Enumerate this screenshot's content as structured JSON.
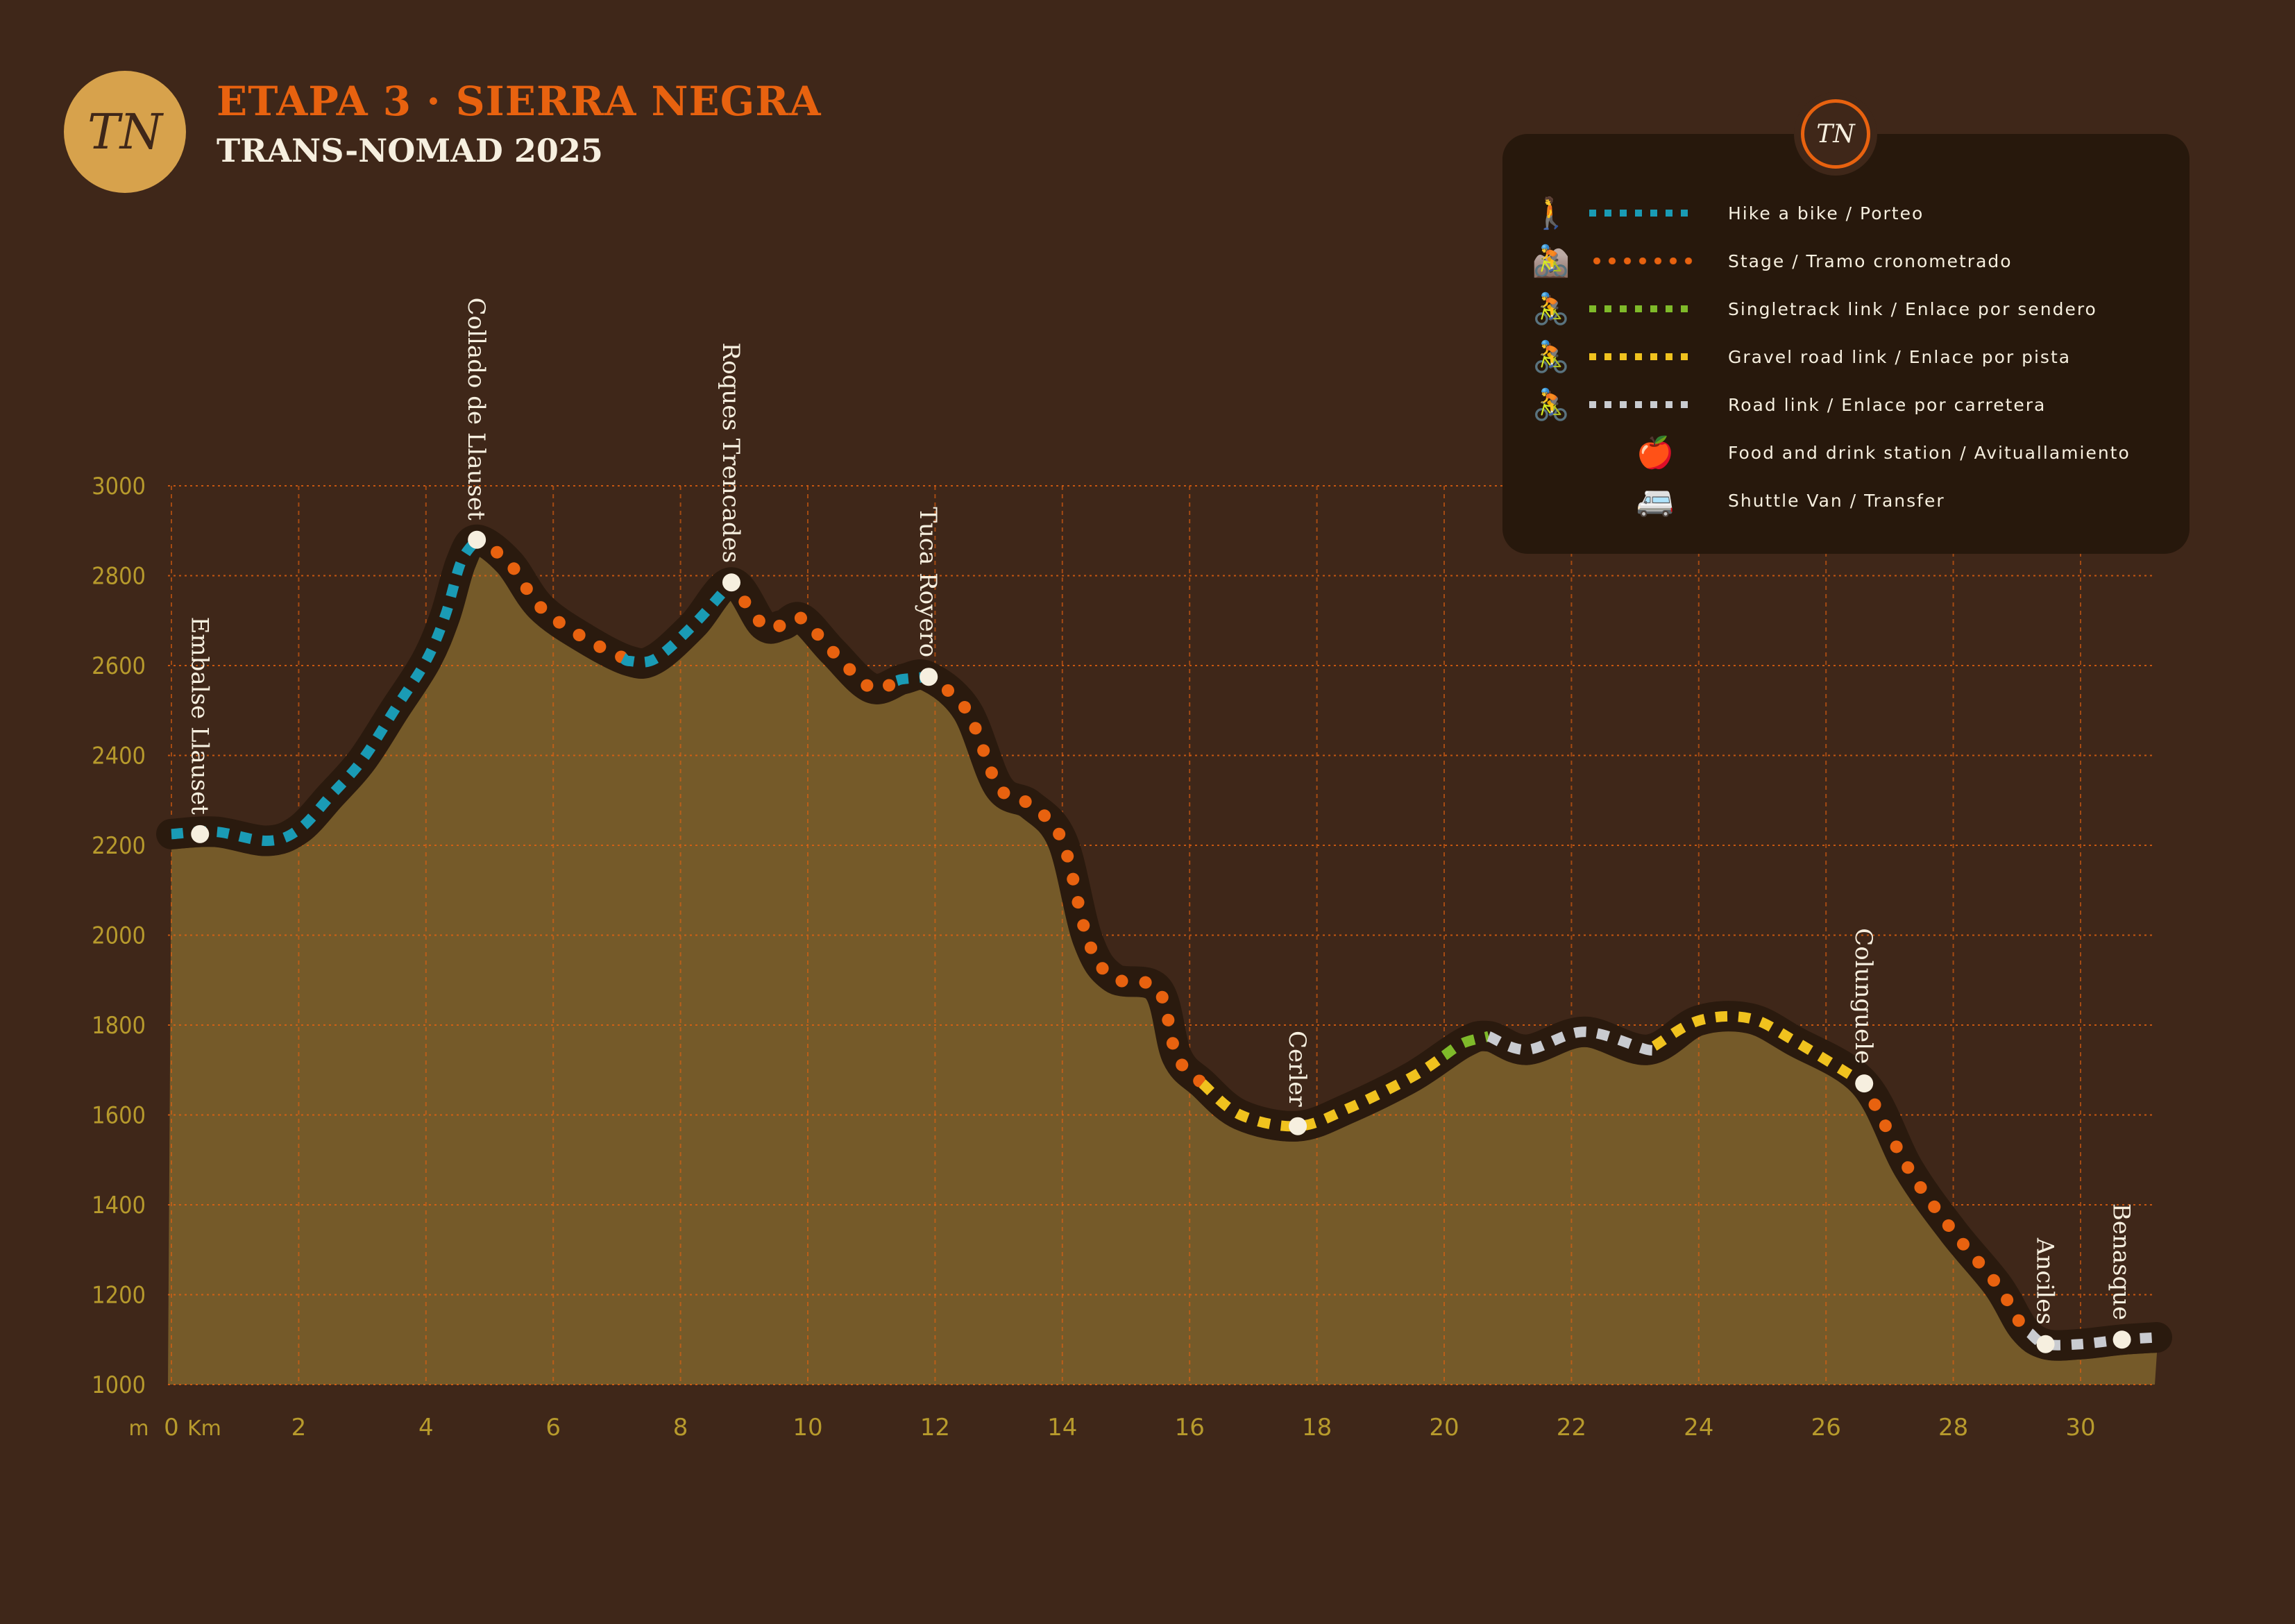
{
  "header": {
    "logo_text": "TN",
    "title": "ETAPA 3 · SIERRA NEGRA",
    "subtitle": "TRANS-NOMAD 2025"
  },
  "legend": {
    "logo_text": "TN",
    "items": [
      {
        "label": "Hike a bike / Porteo",
        "color": "#1a9bb5",
        "icon": "hiker-carrying-bike-icon",
        "style": "square"
      },
      {
        "label": "Stage / Tramo cronometrado",
        "color": "#e8620f",
        "icon": "downhill-rider-icon",
        "style": "dot"
      },
      {
        "label": "Singletrack link / Enlace por sendero",
        "color": "#7fba2a",
        "icon": "cyclist-icon",
        "style": "square"
      },
      {
        "label": "Gravel road link / Enlace por pista",
        "color": "#f0c21e",
        "icon": "cyclist-icon",
        "style": "square"
      },
      {
        "label": "Road link / Enlace por carretera",
        "color": "#c9cbd0",
        "icon": "cyclist-icon",
        "style": "square"
      },
      {
        "label": "Food and drink station / Avituallamiento",
        "color": "#e09a3a",
        "icon": "food-icon",
        "style": "none"
      },
      {
        "label": "Shuttle Van / Transfer",
        "color": "#e8620f",
        "icon": "van-icon",
        "style": "none"
      }
    ]
  },
  "chart_data": {
    "type": "area",
    "title": "ETAPA 3 · SIERRA NEGRA",
    "xlabel": "Km",
    "ylabel": "m",
    "xlim": [
      0,
      31.2
    ],
    "ylim": [
      1000,
      3000
    ],
    "xticks": [
      0,
      2,
      4,
      6,
      8,
      10,
      12,
      14,
      16,
      18,
      20,
      22,
      24,
      26,
      28,
      30
    ],
    "xtick_labels": [
      "0",
      "2",
      "4",
      "6",
      "8",
      "10",
      "12",
      "14",
      "16",
      "18",
      "20",
      "22",
      "24",
      "26",
      "28",
      "30"
    ],
    "yticks": [
      1000,
      1200,
      1400,
      1600,
      1800,
      2000,
      2200,
      2400,
      2600,
      2800,
      3000
    ],
    "ytick_labels": [
      "1000",
      "1200",
      "1400",
      "1600",
      "1800",
      "2000",
      "2200",
      "2400",
      "2600",
      "2800",
      "3000"
    ],
    "y_unit_label": "m",
    "x_unit_label": "Km",
    "grid": true,
    "profile": [
      [
        0,
        2225
      ],
      [
        0.7,
        2230
      ],
      [
        1.5,
        2210
      ],
      [
        2,
        2235
      ],
      [
        2.5,
        2310
      ],
      [
        3,
        2390
      ],
      [
        3.5,
        2500
      ],
      [
        4,
        2610
      ],
      [
        4.3,
        2710
      ],
      [
        4.55,
        2830
      ],
      [
        4.8,
        2880
      ],
      [
        5.3,
        2830
      ],
      [
        5.8,
        2730
      ],
      [
        6.5,
        2660
      ],
      [
        7.2,
        2610
      ],
      [
        7.6,
        2615
      ],
      [
        8.2,
        2690
      ],
      [
        8.8,
        2785
      ],
      [
        9.3,
        2690
      ],
      [
        9.6,
        2690
      ],
      [
        9.9,
        2705
      ],
      [
        10.4,
        2630
      ],
      [
        11,
        2550
      ],
      [
        11.5,
        2570
      ],
      [
        11.9,
        2575
      ],
      [
        12.5,
        2500
      ],
      [
        13,
        2330
      ],
      [
        13.5,
        2290
      ],
      [
        14,
        2210
      ],
      [
        14.4,
        1990
      ],
      [
        14.8,
        1905
      ],
      [
        15.5,
        1880
      ],
      [
        15.8,
        1730
      ],
      [
        16.2,
        1670
      ],
      [
        16.8,
        1600
      ],
      [
        17.7,
        1575
      ],
      [
        18.5,
        1615
      ],
      [
        19.5,
        1685
      ],
      [
        20.3,
        1760
      ],
      [
        20.7,
        1775
      ],
      [
        21.3,
        1745
      ],
      [
        22.2,
        1785
      ],
      [
        23.2,
        1745
      ],
      [
        24,
        1810
      ],
      [
        24.8,
        1815
      ],
      [
        25.5,
        1765
      ],
      [
        26.6,
        1670
      ],
      [
        27.3,
        1480
      ],
      [
        28,
        1340
      ],
      [
        28.7,
        1220
      ],
      [
        29.1,
        1125
      ],
      [
        29.45,
        1090
      ],
      [
        30,
        1090
      ],
      [
        30.65,
        1100
      ],
      [
        31.2,
        1105
      ]
    ],
    "segments": [
      {
        "from": 0,
        "to": 4.8,
        "type": "Hike a bike / Porteo"
      },
      {
        "from": 4.8,
        "to": 7.1,
        "type": "Stage / Tramo cronometrado"
      },
      {
        "from": 7.1,
        "to": 8.8,
        "type": "Hike a bike / Porteo"
      },
      {
        "from": 8.8,
        "to": 11.4,
        "type": "Stage / Tramo cronometrado"
      },
      {
        "from": 11.4,
        "to": 11.9,
        "type": "Hike a bike / Porteo"
      },
      {
        "from": 11.9,
        "to": 16.2,
        "type": "Stage / Tramo cronometrado"
      },
      {
        "from": 16.2,
        "to": 20.0,
        "type": "Gravel road link / Enlace por pista"
      },
      {
        "from": 20.0,
        "to": 20.7,
        "type": "Singletrack link / Enlace por sendero"
      },
      {
        "from": 20.7,
        "to": 23.3,
        "type": "Road link / Enlace por carretera"
      },
      {
        "from": 23.3,
        "to": 26.6,
        "type": "Gravel road link / Enlace por pista"
      },
      {
        "from": 26.6,
        "to": 29.2,
        "type": "Stage / Tramo cronometrado"
      },
      {
        "from": 29.2,
        "to": 31.2,
        "type": "Road link / Enlace por carretera"
      }
    ],
    "waypoints": [
      {
        "name": "Embalse Llauset",
        "km": 0.45,
        "elev": 2225
      },
      {
        "name": "Collado de Llauset",
        "km": 4.8,
        "elev": 2880
      },
      {
        "name": "Roques Trencades",
        "km": 8.8,
        "elev": 2785
      },
      {
        "name": "Tuca Royero",
        "km": 11.9,
        "elev": 2575
      },
      {
        "name": "Cerler",
        "km": 17.7,
        "elev": 1575
      },
      {
        "name": "Colunguele",
        "km": 26.6,
        "elev": 1670
      },
      {
        "name": "Anciles",
        "km": 29.45,
        "elev": 1090
      },
      {
        "name": "Benasque",
        "km": 30.65,
        "elev": 1100
      }
    ],
    "colors": {
      "fill": "#755a29",
      "grid": "#e8620f",
      "axis_text": "#b79a2c",
      "line_casing": "#2a1a0e",
      "waypoint": "#f6efdf"
    }
  }
}
